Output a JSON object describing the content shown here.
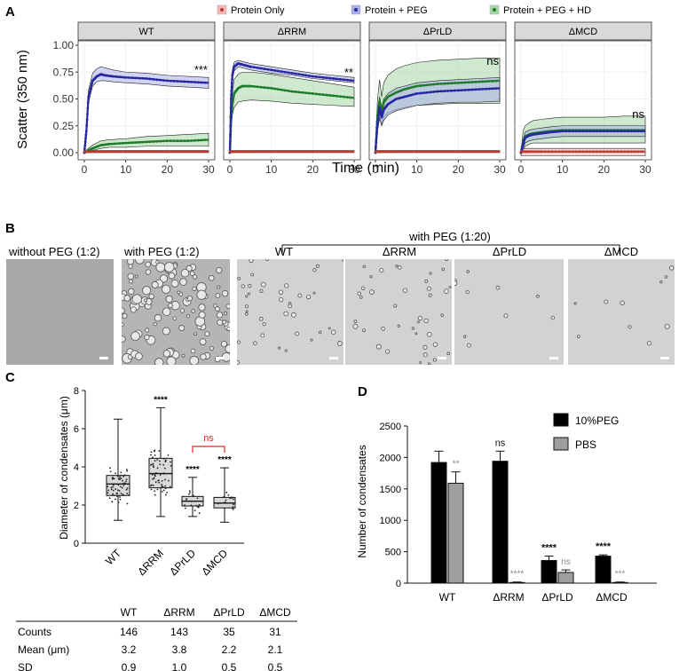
{
  "panel_labels": {
    "a": "A",
    "b": "B",
    "c": "C",
    "d": "D"
  },
  "chart_data": [
    {
      "id": "A",
      "type": "line",
      "legend": [
        {
          "name": "Protein Only",
          "color": "#c0392b",
          "fill": "#f4b6b6"
        },
        {
          "name": "Protein + PEG",
          "color": "#2727a0",
          "fill": "#aab0e8"
        },
        {
          "name": "Protein + PEG + HD",
          "color": "#1e7b2a",
          "fill": "#a6d7a6"
        }
      ],
      "ylabel": "Scatter (350 nm)",
      "xlabel": "Time (min)",
      "xlim": [
        0,
        30
      ],
      "ylim": [
        0,
        1.0
      ],
      "xticks": [
        "0",
        "10",
        "20",
        "30"
      ],
      "yticks": [
        "0.00",
        "0.25",
        "0.50",
        "0.75",
        "1.00"
      ],
      "facets": [
        {
          "title": "WT",
          "annotation": "***",
          "series": {
            "Protein Only": {
              "x": [
                0,
                1,
                2,
                5,
                10,
                15,
                20,
                25,
                30
              ],
              "y": [
                0.01,
                0.01,
                0.01,
                0.01,
                0.01,
                0.01,
                0.01,
                0.01,
                0.01
              ],
              "lo": [
                0,
                0,
                0,
                0,
                0,
                0,
                0,
                0,
                0
              ],
              "hi": [
                0.02,
                0.02,
                0.02,
                0.02,
                0.02,
                0.02,
                0.02,
                0.02,
                0.02
              ]
            },
            "Protein + PEG": {
              "x": [
                0,
                0.5,
                1,
                2,
                3,
                4,
                5,
                7,
                10,
                15,
                20,
                25,
                30
              ],
              "y": [
                0.0,
                0.2,
                0.52,
                0.67,
                0.71,
                0.73,
                0.72,
                0.71,
                0.7,
                0.69,
                0.67,
                0.66,
                0.65
              ],
              "lo": [
                0,
                0.15,
                0.46,
                0.62,
                0.66,
                0.67,
                0.67,
                0.66,
                0.65,
                0.64,
                0.62,
                0.61,
                0.6
              ],
              "hi": [
                0,
                0.25,
                0.58,
                0.74,
                0.78,
                0.8,
                0.79,
                0.77,
                0.75,
                0.74,
                0.72,
                0.71,
                0.7
              ]
            },
            "Protein + PEG + HD": {
              "x": [
                0,
                1,
                2,
                4,
                6,
                10,
                15,
                20,
                25,
                30
              ],
              "y": [
                0.0,
                0.02,
                0.04,
                0.07,
                0.08,
                0.09,
                0.1,
                0.11,
                0.11,
                0.12
              ],
              "lo": [
                0,
                0.01,
                0.02,
                0.04,
                0.05,
                0.05,
                0.06,
                0.06,
                0.06,
                0.06
              ],
              "hi": [
                0,
                0.04,
                0.07,
                0.11,
                0.12,
                0.13,
                0.15,
                0.16,
                0.17,
                0.18
              ]
            }
          }
        },
        {
          "title": "ΔRRM",
          "annotation": "**",
          "series": {
            "Protein Only": {
              "x": [
                0,
                1,
                2,
                5,
                10,
                15,
                20,
                25,
                30
              ],
              "y": [
                0.01,
                0.01,
                0.01,
                0.01,
                0.01,
                0.01,
                0.01,
                0.01,
                0.01
              ],
              "lo": [
                0,
                0,
                0,
                0,
                0,
                0,
                0,
                0,
                0
              ],
              "hi": [
                0.02,
                0.02,
                0.02,
                0.02,
                0.02,
                0.02,
                0.02,
                0.02,
                0.02
              ]
            },
            "Protein + PEG": {
              "x": [
                0,
                0.3,
                0.6,
                1,
                2,
                3,
                5,
                10,
                15,
                20,
                25,
                30
              ],
              "y": [
                0.0,
                0.5,
                0.72,
                0.8,
                0.83,
                0.82,
                0.8,
                0.77,
                0.74,
                0.71,
                0.69,
                0.67
              ],
              "lo": [
                0,
                0.45,
                0.68,
                0.76,
                0.8,
                0.79,
                0.77,
                0.74,
                0.72,
                0.69,
                0.67,
                0.65
              ],
              "hi": [
                0,
                0.55,
                0.76,
                0.84,
                0.86,
                0.85,
                0.83,
                0.8,
                0.77,
                0.74,
                0.72,
                0.7
              ]
            },
            "Protein + PEG + HD": {
              "x": [
                0,
                0.3,
                0.6,
                1,
                2,
                3,
                5,
                10,
                15,
                20,
                25,
                30
              ],
              "y": [
                0.0,
                0.3,
                0.45,
                0.55,
                0.6,
                0.62,
                0.62,
                0.6,
                0.57,
                0.55,
                0.53,
                0.51
              ],
              "lo": [
                0,
                0.25,
                0.35,
                0.42,
                0.47,
                0.48,
                0.49,
                0.48,
                0.46,
                0.45,
                0.44,
                0.43
              ],
              "hi": [
                0,
                0.35,
                0.55,
                0.68,
                0.73,
                0.75,
                0.75,
                0.73,
                0.7,
                0.67,
                0.64,
                0.61
              ]
            }
          }
        },
        {
          "title": "ΔPrLD",
          "annotation": "ns",
          "series": {
            "Protein Only": {
              "x": [
                0,
                1,
                2,
                5,
                10,
                15,
                20,
                25,
                30
              ],
              "y": [
                0.01,
                0.01,
                0.01,
                0.01,
                0.01,
                0.01,
                0.01,
                0.01,
                0.01
              ],
              "lo": [
                0,
                0,
                0,
                0,
                0,
                0,
                0,
                0,
                0
              ],
              "hi": [
                0.02,
                0.02,
                0.02,
                0.02,
                0.02,
                0.02,
                0.02,
                0.02,
                0.02
              ]
            },
            "Protein + PEG": {
              "x": [
                0,
                0.5,
                1,
                1.5,
                2,
                3,
                5,
                7,
                10,
                15,
                20,
                25,
                30
              ],
              "y": [
                0.0,
                0.28,
                0.42,
                0.33,
                0.4,
                0.45,
                0.5,
                0.52,
                0.55,
                0.57,
                0.58,
                0.59,
                0.6
              ],
              "lo": [
                0,
                0.2,
                0.32,
                0.25,
                0.3,
                0.35,
                0.39,
                0.41,
                0.44,
                0.46,
                0.47,
                0.47,
                0.48
              ],
              "hi": [
                0,
                0.35,
                0.52,
                0.42,
                0.5,
                0.55,
                0.6,
                0.62,
                0.65,
                0.67,
                0.68,
                0.69,
                0.7
              ]
            },
            "Protein + PEG + HD": {
              "x": [
                0,
                0.5,
                1,
                1.5,
                2,
                3,
                5,
                7,
                10,
                15,
                20,
                25,
                30
              ],
              "y": [
                0.0,
                0.35,
                0.48,
                0.38,
                0.47,
                0.52,
                0.56,
                0.59,
                0.62,
                0.64,
                0.65,
                0.66,
                0.67
              ],
              "lo": [
                0,
                0.25,
                0.34,
                0.26,
                0.33,
                0.37,
                0.4,
                0.42,
                0.44,
                0.45,
                0.46,
                0.46,
                0.46
              ],
              "hi": [
                0,
                0.5,
                0.68,
                0.52,
                0.65,
                0.72,
                0.78,
                0.81,
                0.84,
                0.86,
                0.87,
                0.88,
                0.88
              ]
            }
          }
        },
        {
          "title": "ΔMCD",
          "annotation": "ns",
          "series": {
            "Protein Only": {
              "x": [
                0,
                1,
                2,
                5,
                10,
                15,
                20,
                25,
                30
              ],
              "y": [
                0.01,
                0.01,
                0.01,
                0.01,
                0.01,
                0.01,
                0.01,
                0.01,
                0.01
              ],
              "lo": [
                -0.03,
                -0.03,
                -0.03,
                -0.03,
                -0.03,
                -0.03,
                -0.03,
                -0.03,
                -0.03
              ],
              "hi": [
                0.04,
                0.04,
                0.04,
                0.04,
                0.04,
                0.04,
                0.04,
                0.04,
                0.04
              ]
            },
            "Protein + PEG": {
              "x": [
                0,
                0.5,
                1,
                2,
                3,
                5,
                7,
                10,
                15,
                20,
                25,
                30
              ],
              "y": [
                0.0,
                0.08,
                0.14,
                0.16,
                0.17,
                0.18,
                0.19,
                0.2,
                0.2,
                0.2,
                0.2,
                0.2
              ],
              "lo": [
                0,
                0.04,
                0.09,
                0.11,
                0.12,
                0.13,
                0.14,
                0.15,
                0.15,
                0.15,
                0.15,
                0.15
              ],
              "hi": [
                0,
                0.12,
                0.19,
                0.21,
                0.22,
                0.23,
                0.24,
                0.25,
                0.25,
                0.25,
                0.25,
                0.25
              ]
            },
            "Protein + PEG + HD": {
              "x": [
                0,
                0.5,
                1,
                2,
                3,
                5,
                7,
                10,
                15,
                20,
                25,
                30
              ],
              "y": [
                0.0,
                0.1,
                0.15,
                0.17,
                0.18,
                0.19,
                0.2,
                0.21,
                0.21,
                0.21,
                0.21,
                0.21
              ],
              "lo": [
                0,
                0.02,
                0.06,
                0.08,
                0.09,
                0.09,
                0.09,
                0.09,
                0.09,
                0.09,
                0.09,
                0.09
              ],
              "hi": [
                0,
                0.2,
                0.25,
                0.28,
                0.3,
                0.31,
                0.32,
                0.33,
                0.33,
                0.33,
                0.34,
                0.34
              ]
            }
          }
        }
      ]
    },
    {
      "id": "C",
      "type": "box",
      "ylabel": "Diameter of condensates (μm)",
      "ylim": [
        0,
        8
      ],
      "yticks": [
        "0",
        "2",
        "4",
        "6",
        "8"
      ],
      "categories": [
        "WT",
        "ΔRRM",
        "ΔPrLD",
        "ΔMCD"
      ],
      "boxes": [
        {
          "min": 1.2,
          "q1": 2.5,
          "median": 3.1,
          "q3": 3.55,
          "max": 6.5,
          "annotation": ""
        },
        {
          "min": 1.4,
          "q1": 2.9,
          "median": 3.65,
          "q3": 4.45,
          "max": 7.1,
          "annotation": "****"
        },
        {
          "min": 1.4,
          "q1": 1.95,
          "median": 2.2,
          "q3": 2.45,
          "max": 3.45,
          "annotation": "****"
        },
        {
          "min": 1.1,
          "q1": 1.85,
          "median": 2.1,
          "q3": 2.4,
          "max": 3.95,
          "annotation": "****"
        }
      ],
      "bracket": {
        "from": "ΔPrLD",
        "to": "ΔMCD",
        "label": "ns",
        "color": "#d62828"
      }
    },
    {
      "id": "D",
      "type": "bar",
      "ylabel": "Number of condensates",
      "ylim": [
        0,
        2500
      ],
      "yticks": [
        "0",
        "500",
        "1000",
        "1500",
        "2000",
        "2500"
      ],
      "categories": [
        "WT",
        "ΔRRM",
        "ΔPrLD",
        "ΔMCD"
      ],
      "series": [
        {
          "name": "10%PEG",
          "color": "#000000",
          "values": [
            1920,
            1940,
            360,
            430
          ],
          "errors": [
            180,
            160,
            70,
            20
          ],
          "annotations": [
            "",
            "ns",
            "****",
            "****"
          ]
        },
        {
          "name": "PBS",
          "color": "#9e9e9e",
          "values": [
            1590,
            10,
            170,
            10
          ],
          "errors": [
            180,
            8,
            40,
            8
          ],
          "annotations": [
            "**",
            "****",
            "ns",
            "***"
          ]
        }
      ]
    }
  ],
  "micrographs": {
    "group_title": "with PEG (1:20)",
    "panels": [
      {
        "label": "without PEG (1:2)",
        "droplets": "none"
      },
      {
        "label": "with PEG (1:2)",
        "droplets": "dense"
      },
      {
        "label": "WT",
        "droplets": "sparse"
      },
      {
        "label": "ΔRRM",
        "droplets": "sparse"
      },
      {
        "label": "ΔPrLD",
        "droplets": "very-sparse"
      },
      {
        "label": "ΔMCD",
        "droplets": "very-sparse"
      }
    ]
  },
  "stats_table": {
    "headers": [
      "",
      "WT",
      "ΔRRM",
      "ΔPrLD",
      "ΔMCD"
    ],
    "rows": [
      [
        "Counts",
        "146",
        "143",
        "35",
        "31"
      ],
      [
        "Mean (μm)",
        "3.2",
        "3.8",
        "2.2",
        "2.1"
      ],
      [
        "SD",
        "0.9",
        "1.0",
        "0.5",
        "0.5"
      ]
    ]
  }
}
